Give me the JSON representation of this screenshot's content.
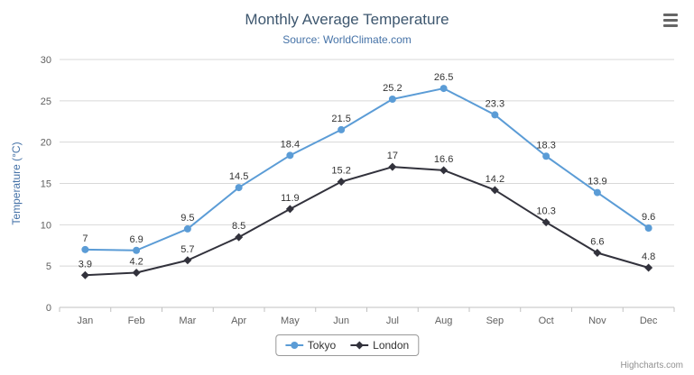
{
  "context_menu": {
    "tooltip": "chart-context-menu"
  },
  "credits": "Highcharts.com",
  "chart_data": {
    "type": "line",
    "title": "Monthly Average Temperature",
    "subtitle": "Source: WorldClimate.com",
    "categories": [
      "Jan",
      "Feb",
      "Mar",
      "Apr",
      "May",
      "Jun",
      "Jul",
      "Aug",
      "Sep",
      "Oct",
      "Nov",
      "Dec"
    ],
    "series": [
      {
        "name": "Tokyo",
        "color": "#5b9cd6",
        "marker": "circle",
        "values": [
          7,
          6.9,
          9.5,
          14.5,
          18.4,
          21.5,
          25.2,
          26.5,
          23.3,
          18.3,
          13.9,
          9.6
        ]
      },
      {
        "name": "London",
        "color": "#32323c",
        "marker": "diamond",
        "values": [
          3.9,
          4.2,
          5.7,
          8.5,
          11.9,
          15.2,
          17,
          16.6,
          14.2,
          10.3,
          6.6,
          4.8
        ]
      }
    ],
    "xlabel": "",
    "ylabel": "Temperature (°C)",
    "ylim": [
      0,
      30
    ],
    "ytick_interval": 5,
    "grid": true,
    "grid_color": "#d8d8d8",
    "axis_line_color": "#c0c0c0",
    "tick_label_color": "#606060",
    "data_label_color": "#333333",
    "legend_position": "bottom"
  }
}
